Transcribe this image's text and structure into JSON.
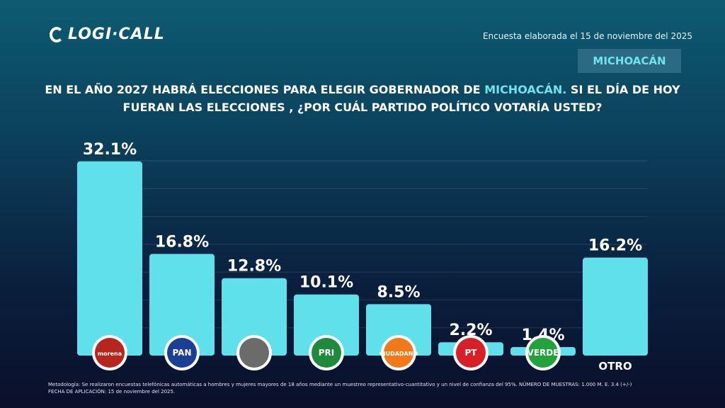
{
  "header": {
    "brand": "LOGI·CALL",
    "date": "Encuesta elaborada el 15 de noviembre del 2025",
    "state_badge": "MICHOACÁN"
  },
  "question": {
    "part1": "EN EL AÑO 2027 HABRÁ ELECCIONES PARA ELEGIR GOBERNADOR DE ",
    "highlight": "MICHOACÁN.",
    "part2": " SI EL DÍA DE HOY FUERAN LAS ELECCIONES , ¿POR CUÁL PARTIDO POLÍTICO VOTARÍA USTED?"
  },
  "chart_data": {
    "type": "bar",
    "categories": [
      "morena",
      "PAN",
      "(sin logo)",
      "PRI",
      "Movimiento Ciudadano",
      "PT",
      "VERDE",
      "OTRO"
    ],
    "values": [
      32.1,
      16.8,
      12.8,
      10.1,
      8.5,
      2.2,
      1.4,
      16.2
    ],
    "labels": [
      "32.1%",
      "16.8%",
      "12.8%",
      "10.1%",
      "8.5%",
      "2.2%",
      "1.4%",
      "16.2%"
    ],
    "ylim": [
      0,
      35
    ],
    "grid": true,
    "bar_color": "#5fe0eb",
    "logo_colors": [
      "#b5261e",
      "#1b3f95",
      "#6b6b6b",
      "#1e8a3c",
      "#f07a1a",
      "#d61f26",
      "#23a13a",
      ""
    ],
    "logo_texts": [
      "morena",
      "PAN",
      "",
      "PRI",
      "CIUDADANO",
      "PT",
      "VERDE",
      "OTRO"
    ]
  },
  "footer": {
    "line1": "Metodología: Se realizaron encuestas telefónicas automáticas a hombres y mujeres mayores de 18 años mediante un muestreo representativo-cuantitativo y un nivel de confianza del 95%. NÚMERO DE MUESTRAS: 1.000 M. E. 3.4 (+/-)",
    "line2": "FECHA DE APLICACIÓN: 15 de noviembre del 2025."
  }
}
